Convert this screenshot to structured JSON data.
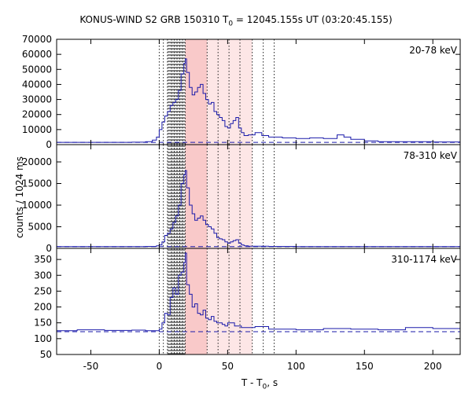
{
  "title_prefix": "KONUS-WIND S2 GRB 150310 T",
  "title_sub": "0",
  "title_suffix": " = 12045.155s UT (03:20:45.155)",
  "ylabel": "counts / 1024 ms",
  "xlabel_prefix": "T - T",
  "xlabel_sub": "0",
  "xlabel_suffix": ", s",
  "colors": {
    "curve": "#1a1aaa",
    "shade": "#f9c9c9",
    "shade_light": "#fde6e6",
    "background_line": "#1a1aaa"
  },
  "chart_data": {
    "type": "line",
    "xlim": [
      -75,
      220
    ],
    "x_ticks": [
      -50,
      0,
      50,
      100,
      150,
      200
    ],
    "vertical_lines": [
      0,
      3,
      6,
      9,
      11,
      13,
      15,
      17,
      19,
      35,
      43,
      51,
      59,
      68,
      76,
      84
    ],
    "hatch_range": [
      6,
      19
    ],
    "shaded_ranges": [
      [
        19,
        35
      ],
      [
        35,
        68
      ]
    ],
    "panels": [
      {
        "band": "20-78 keV",
        "ylim": [
          0,
          70000
        ],
        "y_ticks": [
          0,
          10000,
          20000,
          30000,
          40000,
          50000,
          60000,
          70000
        ],
        "background": 1500,
        "x": [
          -75,
          -20,
          -10,
          -5,
          -2,
          0,
          2,
          4,
          6,
          8,
          10,
          12,
          14,
          16,
          18,
          19,
          20,
          22,
          24,
          26,
          28,
          30,
          32,
          34,
          36,
          38,
          40,
          42,
          44,
          46,
          48,
          50,
          52,
          54,
          56,
          58,
          60,
          62,
          65,
          70,
          75,
          80,
          90,
          100,
          110,
          120,
          130,
          135,
          140,
          150,
          160,
          180,
          200,
          220
        ],
        "y": [
          1500,
          1600,
          2000,
          3000,
          5000,
          10000,
          15000,
          19000,
          22000,
          26000,
          28000,
          30000,
          36000,
          47000,
          54000,
          57000,
          48000,
          38000,
          33000,
          35000,
          38000,
          40000,
          34000,
          30000,
          27000,
          28000,
          22000,
          20000,
          18000,
          16000,
          12000,
          11000,
          14000,
          16000,
          18000,
          11000,
          8000,
          6000,
          6500,
          8000,
          6000,
          5000,
          4500,
          4000,
          4500,
          4000,
          6500,
          5000,
          3500,
          2500,
          2000,
          2000,
          1800,
          1600
        ]
      },
      {
        "band": "78-310 keV",
        "ylim": [
          0,
          24000
        ],
        "y_ticks": [
          0,
          5000,
          10000,
          15000,
          20000
        ],
        "background": 400,
        "x": [
          -75,
          -10,
          -2,
          0,
          2,
          4,
          6,
          8,
          10,
          12,
          14,
          16,
          18,
          19,
          20,
          22,
          24,
          26,
          28,
          30,
          32,
          34,
          36,
          38,
          40,
          42,
          44,
          46,
          48,
          50,
          52,
          54,
          56,
          58,
          60,
          62,
          65,
          70,
          80,
          100,
          150,
          220
        ],
        "y": [
          400,
          450,
          600,
          800,
          1500,
          3000,
          3500,
          4500,
          6000,
          7500,
          10000,
          15000,
          17000,
          18000,
          14000,
          10000,
          8000,
          6500,
          7000,
          7500,
          6500,
          5500,
          5000,
          4500,
          3500,
          2500,
          2200,
          2000,
          1500,
          1200,
          1500,
          1800,
          2000,
          1200,
          800,
          600,
          500,
          500,
          450,
          400,
          400,
          350
        ]
      },
      {
        "band": "310-1174 keV",
        "ylim": [
          50,
          385
        ],
        "y_ticks": [
          50,
          100,
          150,
          200,
          250,
          300,
          350
        ],
        "background": 122,
        "x": [
          -75,
          -60,
          -40,
          -20,
          -10,
          0,
          2,
          4,
          6,
          8,
          10,
          12,
          14,
          16,
          18,
          19,
          20,
          22,
          24,
          26,
          28,
          30,
          32,
          34,
          36,
          38,
          40,
          42,
          44,
          46,
          48,
          50,
          55,
          60,
          70,
          80,
          100,
          120,
          140,
          160,
          180,
          200,
          220
        ],
        "y": [
          125,
          128,
          126,
          127,
          125,
          130,
          150,
          180,
          175,
          230,
          260,
          240,
          300,
          310,
          340,
          370,
          270,
          240,
          200,
          210,
          180,
          175,
          190,
          165,
          160,
          170,
          155,
          150,
          150,
          145,
          140,
          150,
          140,
          135,
          138,
          130,
          128,
          132,
          130,
          128,
          135,
          132,
          130
        ]
      }
    ]
  }
}
